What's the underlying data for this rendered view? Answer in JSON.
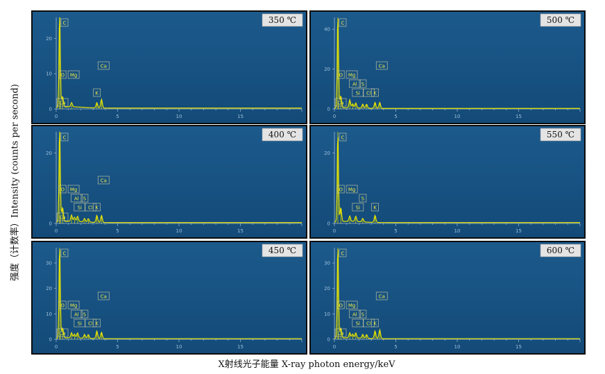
{
  "y_axis_label": "强度（计数率）Intensity (counts per second)",
  "x_axis_label": "X射线光子能量 X-ray photon energy/keV",
  "colors": {
    "panel_bg_top": "#1c5a8c",
    "panel_bg_bottom": "#134a78",
    "frame": "#0c0c0c",
    "spectrum": "#e8e400",
    "axis": "#c7d6e4",
    "tick_text": "#9ec0dc",
    "tag_border": "#c8c8a0",
    "tag_text": "#f0e94a",
    "temp_box": "#e4e4e4"
  },
  "chart_data": [
    {
      "type": "line",
      "temperature": "350 ℃",
      "xlim": [
        0,
        20
      ],
      "ylim": [
        0,
        26
      ],
      "x_ticks": [
        0,
        5,
        10,
        15
      ],
      "y_ticks": [
        0,
        10,
        20
      ],
      "peaks": [
        {
          "element": "C",
          "energy": 0.28,
          "height": 26
        },
        {
          "element": "O",
          "energy": 0.52,
          "height": 3
        },
        {
          "element": "Ca",
          "energy": 0.34,
          "height": 2
        },
        {
          "element": "Mg",
          "energy": 1.25,
          "height": 1.2
        },
        {
          "element": "K",
          "energy": 3.31,
          "height": 1.5
        },
        {
          "element": "Ca",
          "energy": 3.69,
          "height": 2.5
        }
      ]
    },
    {
      "type": "line",
      "temperature": "500 ℃",
      "xlim": [
        0,
        20
      ],
      "ylim": [
        0,
        46
      ],
      "x_ticks": [
        0,
        5,
        10,
        15
      ],
      "y_ticks": [
        0,
        20,
        40
      ],
      "peaks": [
        {
          "element": "C",
          "energy": 0.28,
          "height": 46
        },
        {
          "element": "O",
          "energy": 0.52,
          "height": 6
        },
        {
          "element": "Ca",
          "energy": 0.34,
          "height": 3
        },
        {
          "element": "Mg",
          "energy": 1.25,
          "height": 4
        },
        {
          "element": "Al",
          "energy": 1.49,
          "height": 2
        },
        {
          "element": "Si",
          "energy": 1.74,
          "height": 2.5
        },
        {
          "element": "S",
          "energy": 2.31,
          "height": 2
        },
        {
          "element": "Cl",
          "energy": 2.62,
          "height": 2
        },
        {
          "element": "K",
          "energy": 3.31,
          "height": 3
        },
        {
          "element": "Ca",
          "energy": 3.69,
          "height": 3
        }
      ]
    },
    {
      "type": "line",
      "temperature": "400 ℃",
      "xlim": [
        0,
        20
      ],
      "ylim": [
        0,
        26
      ],
      "x_ticks": [
        0,
        5,
        10,
        15
      ],
      "y_ticks": [
        0,
        20
      ],
      "peaks": [
        {
          "element": "C",
          "energy": 0.28,
          "height": 26
        },
        {
          "element": "O",
          "energy": 0.52,
          "height": 4
        },
        {
          "element": "Ca",
          "energy": 0.34,
          "height": 2
        },
        {
          "element": "Mg",
          "energy": 1.25,
          "height": 1.8
        },
        {
          "element": "Al",
          "energy": 1.49,
          "height": 1.2
        },
        {
          "element": "Si",
          "energy": 1.74,
          "height": 1.5
        },
        {
          "element": "S",
          "energy": 2.31,
          "height": 1
        },
        {
          "element": "Cl",
          "energy": 2.62,
          "height": 1
        },
        {
          "element": "K",
          "energy": 3.31,
          "height": 2
        },
        {
          "element": "Ca",
          "energy": 3.69,
          "height": 2
        }
      ]
    },
    {
      "type": "line",
      "temperature": "550 ℃",
      "xlim": [
        0,
        20
      ],
      "ylim": [
        0,
        26
      ],
      "x_ticks": [
        0,
        5,
        10,
        15
      ],
      "y_ticks": [
        0,
        20
      ],
      "peaks": [
        {
          "element": "C",
          "energy": 0.28,
          "height": 26
        },
        {
          "element": "O",
          "energy": 0.52,
          "height": 4
        },
        {
          "element": "Mg",
          "energy": 1.25,
          "height": 1.5
        },
        {
          "element": "Si",
          "energy": 1.74,
          "height": 1.5
        },
        {
          "element": "S",
          "energy": 2.31,
          "height": 1
        },
        {
          "element": "K",
          "energy": 3.31,
          "height": 2
        }
      ]
    },
    {
      "type": "line",
      "temperature": "450 ℃",
      "xlim": [
        0,
        20
      ],
      "ylim": [
        0,
        36
      ],
      "x_ticks": [
        0,
        5,
        10,
        15
      ],
      "y_ticks": [
        0,
        10,
        20,
        30
      ],
      "peaks": [
        {
          "element": "C",
          "energy": 0.28,
          "height": 36
        },
        {
          "element": "O",
          "energy": 0.52,
          "height": 4
        },
        {
          "element": "Ca",
          "energy": 0.34,
          "height": 2
        },
        {
          "element": "Mg",
          "energy": 1.25,
          "height": 2
        },
        {
          "element": "Al",
          "energy": 1.49,
          "height": 1.5
        },
        {
          "element": "Si",
          "energy": 1.74,
          "height": 2
        },
        {
          "element": "S",
          "energy": 2.31,
          "height": 1.5
        },
        {
          "element": "Cl",
          "energy": 2.62,
          "height": 1.5
        },
        {
          "element": "K",
          "energy": 3.31,
          "height": 3
        },
        {
          "element": "Ca",
          "energy": 3.69,
          "height": 2.5
        }
      ]
    },
    {
      "type": "line",
      "temperature": "600 ℃",
      "xlim": [
        0,
        20
      ],
      "ylim": [
        0,
        36
      ],
      "x_ticks": [
        0,
        5,
        10,
        15
      ],
      "y_ticks": [
        0,
        10,
        20,
        30
      ],
      "peaks": [
        {
          "element": "C",
          "energy": 0.28,
          "height": 36
        },
        {
          "element": "O",
          "energy": 0.52,
          "height": 4
        },
        {
          "element": "Ca",
          "energy": 0.34,
          "height": 2
        },
        {
          "element": "Mg",
          "energy": 1.25,
          "height": 2
        },
        {
          "element": "Al",
          "energy": 1.49,
          "height": 1.5
        },
        {
          "element": "Si",
          "energy": 1.74,
          "height": 2
        },
        {
          "element": "S",
          "energy": 2.31,
          "height": 1.5
        },
        {
          "element": "Cl",
          "energy": 2.62,
          "height": 1.5
        },
        {
          "element": "K",
          "energy": 3.31,
          "height": 3
        },
        {
          "element": "Ca",
          "energy": 3.69,
          "height": 3.5
        }
      ]
    }
  ]
}
